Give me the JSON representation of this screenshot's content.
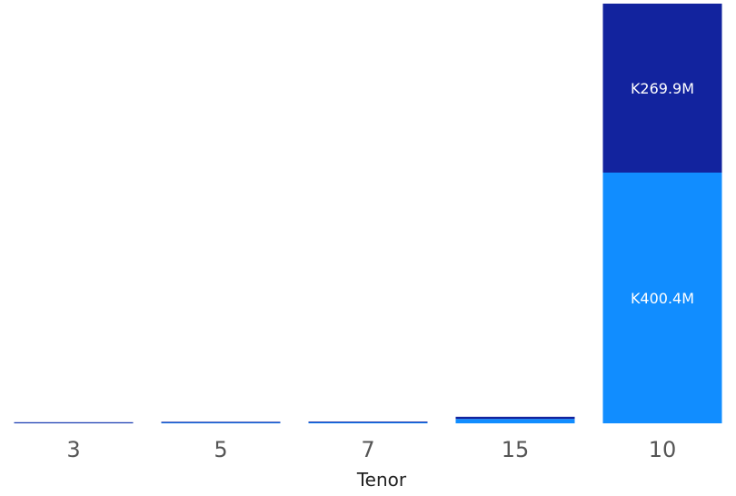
{
  "chart_data": {
    "type": "bar",
    "stacked": true,
    "title": "",
    "xlabel": "Tenor",
    "ylabel": "",
    "categories": [
      "3",
      "5",
      "7",
      "15",
      "10"
    ],
    "ylim": [
      0,
      670.3
    ],
    "series": [
      {
        "values": [
          0.3,
          1.0,
          1.2,
          7.0,
          400.4
        ],
        "color": "#118DFF",
        "labels": [
          "",
          "",
          "",
          "",
          "K400.4M"
        ]
      },
      {
        "values": [
          0.7,
          1.5,
          1.5,
          3.5,
          269.9
        ],
        "color": "#12239E",
        "labels": [
          "",
          "",
          "",
          "",
          "K269.9M"
        ]
      }
    ],
    "grid": false,
    "legend": "none"
  }
}
